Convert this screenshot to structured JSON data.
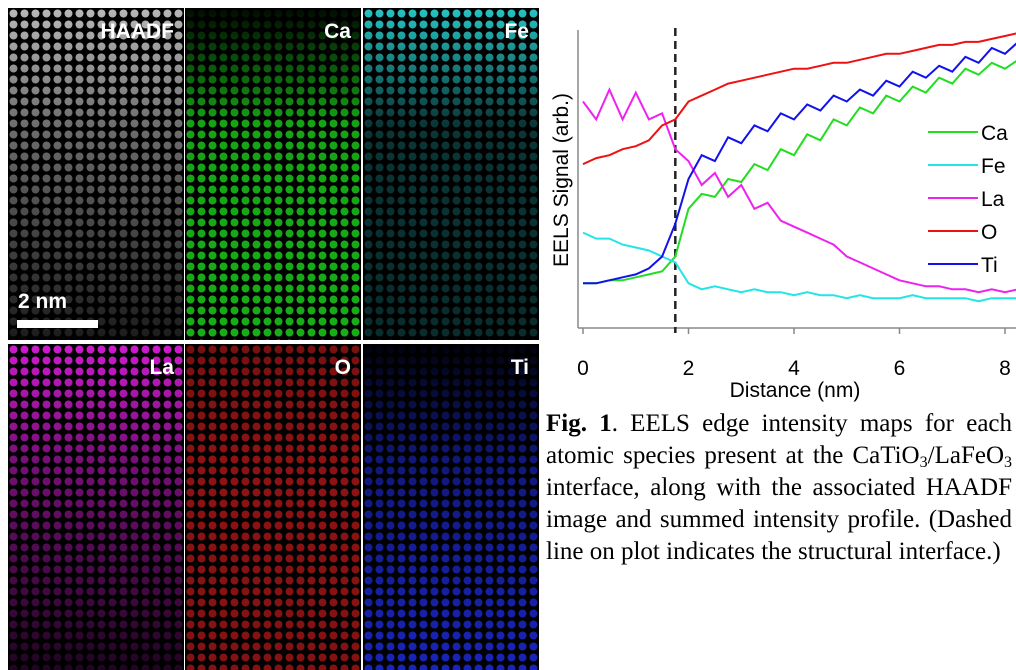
{
  "maps": [
    {
      "label": "HAADF",
      "color": "#d8d8d8"
    },
    {
      "label": "Ca",
      "color": "#22ff22"
    },
    {
      "label": "Fe",
      "color": "#33ffff"
    },
    {
      "label": "La",
      "color": "#ff22ff"
    },
    {
      "label": "O",
      "color": "#ff2222"
    },
    {
      "label": "Ti",
      "color": "#2233ff"
    }
  ],
  "scale_bar": "2 nm",
  "chart_data": {
    "type": "line",
    "xlabel": "Distance (nm)",
    "ylabel": "EELS Signal (arb.)",
    "x": [
      0,
      0.25,
      0.5,
      0.75,
      1,
      1.25,
      1.5,
      1.75,
      2,
      2.25,
      2.5,
      2.75,
      3,
      3.25,
      3.5,
      3.75,
      4,
      4.25,
      4.5,
      4.75,
      5,
      5.25,
      5.5,
      5.75,
      6,
      6.25,
      6.5,
      6.75,
      7,
      7.25,
      7.5,
      7.75,
      8,
      8.25
    ],
    "xlim": [
      0,
      8.3
    ],
    "xticks": [
      0,
      2,
      4,
      6,
      8
    ],
    "ylim": [
      0,
      100
    ],
    "interface_x": 1.75,
    "legend": "right",
    "series": [
      {
        "name": "Ca",
        "color": "#22dd22",
        "values": [
          15,
          15,
          16,
          16,
          17,
          18,
          19,
          24,
          40,
          45,
          44,
          50,
          49,
          55,
          53,
          60,
          58,
          65,
          63,
          70,
          68,
          74,
          72,
          78,
          76,
          81,
          79,
          84,
          82,
          87,
          85,
          89,
          87,
          90
        ]
      },
      {
        "name": "Fe",
        "color": "#22e5e5",
        "values": [
          32,
          30,
          30,
          28,
          27,
          26,
          24,
          22,
          15,
          13,
          14,
          13,
          12,
          13,
          12,
          12,
          11,
          12,
          11,
          11,
          10,
          11,
          10,
          10,
          10,
          11,
          10,
          10,
          10,
          10,
          9,
          10,
          10,
          10
        ]
      },
      {
        "name": "La",
        "color": "#ee22ee",
        "values": [
          76,
          70,
          80,
          70,
          79,
          70,
          72,
          60,
          56,
          48,
          52,
          44,
          48,
          40,
          42,
          36,
          34,
          32,
          30,
          28,
          24,
          22,
          20,
          18,
          16,
          15,
          14,
          14,
          13,
          13,
          12,
          13,
          12,
          13
        ]
      },
      {
        "name": "O",
        "color": "#ee1111",
        "values": [
          55,
          57,
          58,
          60,
          61,
          63,
          68,
          70,
          76,
          78,
          80,
          82,
          83,
          84,
          85,
          86,
          87,
          87,
          88,
          89,
          89,
          90,
          91,
          92,
          92,
          93,
          94,
          95,
          95,
          96,
          96,
          97,
          98,
          99
        ]
      },
      {
        "name": "Ti",
        "color": "#1111ee",
        "values": [
          15,
          15,
          16,
          17,
          18,
          20,
          24,
          35,
          50,
          58,
          56,
          64,
          62,
          68,
          66,
          72,
          70,
          75,
          73,
          78,
          76,
          80,
          78,
          83,
          81,
          86,
          84,
          88,
          86,
          91,
          89,
          94,
          92,
          96
        ]
      }
    ]
  },
  "caption": [
    "Fig. 1",
    ". EELS edge intensity maps for each atomic species present at the CaTiO",
    "3",
    "/LaFeO",
    "3",
    " interface, along with the associated HAADF image and summed intensity profile. (Dashed line on plot indicates the structural interface.)"
  ]
}
